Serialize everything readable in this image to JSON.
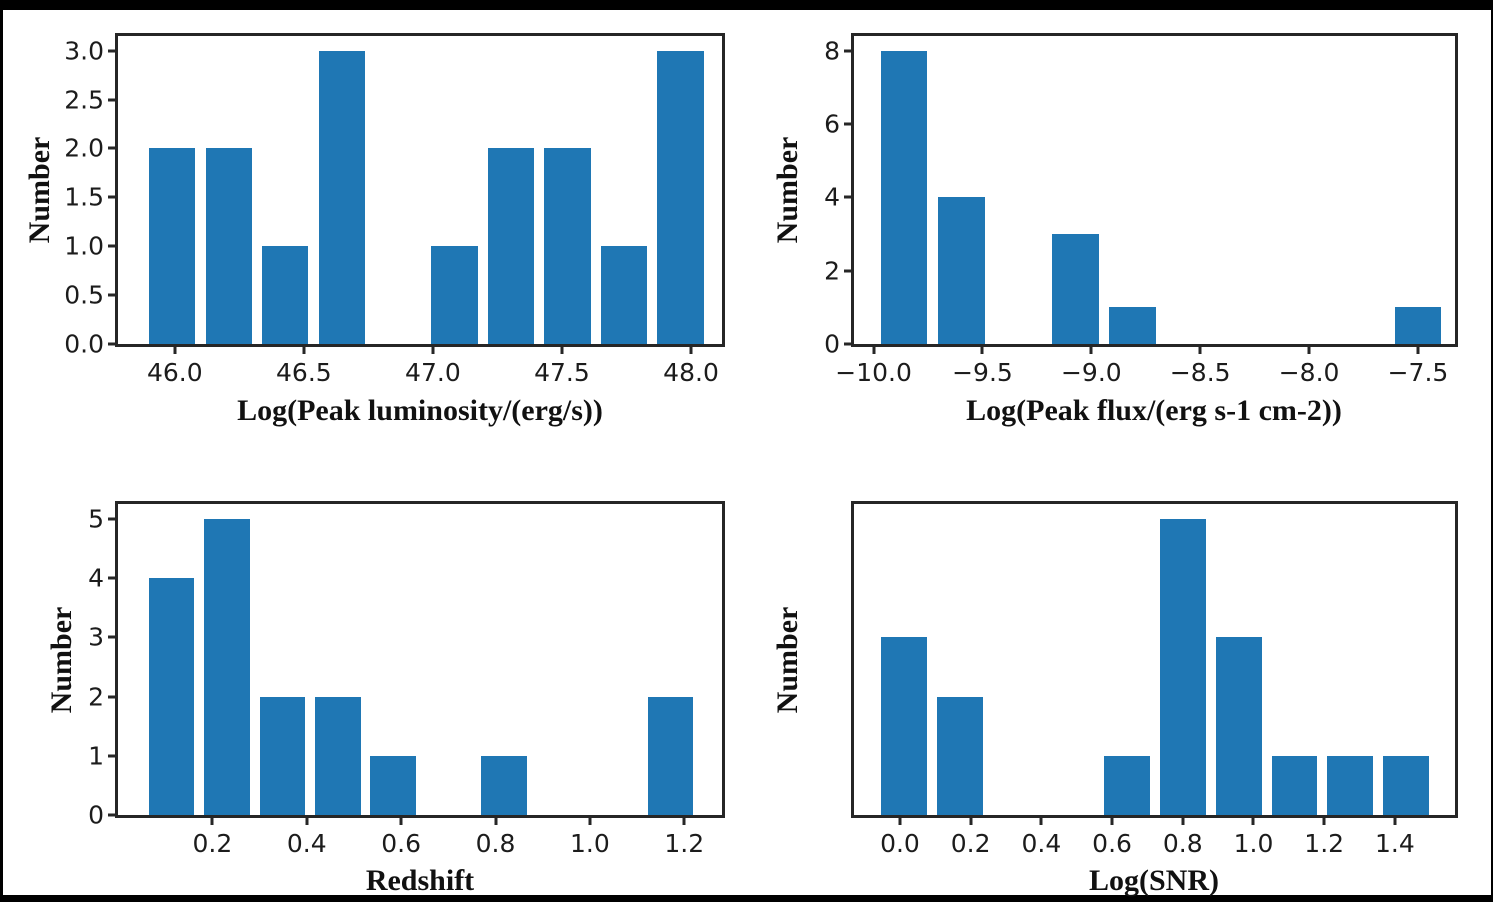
{
  "figure": {
    "background_color": "#000000",
    "canvas_color": "#ffffff",
    "bar_color": "#1f77b4",
    "spine_color": "#262626"
  },
  "chart_data": [
    {
      "id": "peak-luminosity-histogram",
      "type": "bar",
      "title": "",
      "xlabel": "Log(Peak luminosity/(erg/s))",
      "ylabel": "Number",
      "bin_centers": [
        45.99,
        46.209,
        46.428,
        46.647,
        46.866,
        47.084,
        47.303,
        47.522,
        47.741,
        47.96
      ],
      "values": [
        2,
        2,
        1,
        3,
        0,
        1,
        2,
        2,
        1,
        3
      ],
      "bar_width": 0.18,
      "xlim": [
        45.78,
        48.12
      ],
      "ylim": [
        0,
        3.15
      ],
      "grid": false,
      "legend": null,
      "xticks": [
        {
          "v": 46.0,
          "label": "46.0"
        },
        {
          "v": 46.5,
          "label": "46.5"
        },
        {
          "v": 47.0,
          "label": "47.0"
        },
        {
          "v": 47.5,
          "label": "47.5"
        },
        {
          "v": 48.0,
          "label": "48.0"
        }
      ],
      "yticks": [
        {
          "v": 0.0,
          "label": "0.0"
        },
        {
          "v": 0.5,
          "label": "0.5"
        },
        {
          "v": 1.0,
          "label": "1.0"
        },
        {
          "v": 1.5,
          "label": "1.5"
        },
        {
          "v": 2.0,
          "label": "2.0"
        },
        {
          "v": 2.5,
          "label": "2.5"
        },
        {
          "v": 3.0,
          "label": "3.0"
        }
      ]
    },
    {
      "id": "peak-flux-histogram",
      "type": "bar",
      "title": "",
      "xlabel": "Log(Peak flux/(erg s-1 cm-2))",
      "ylabel": "Number",
      "bin_centers": [
        -9.86,
        -9.598,
        -9.336,
        -9.073,
        -8.811,
        -8.549,
        -8.287,
        -8.024,
        -7.762,
        -7.5
      ],
      "values": [
        8,
        4,
        0,
        3,
        1,
        0,
        0,
        0,
        0,
        1
      ],
      "bar_width": 0.215,
      "xlim": [
        -10.09,
        -7.33
      ],
      "ylim": [
        0,
        8.4
      ],
      "grid": false,
      "legend": null,
      "xticks": [
        {
          "v": -10.0,
          "label": "−10.0"
        },
        {
          "v": -9.5,
          "label": "−9.5"
        },
        {
          "v": -9.0,
          "label": "−9.0"
        },
        {
          "v": -8.5,
          "label": "−8.5"
        },
        {
          "v": -8.0,
          "label": "−8.0"
        },
        {
          "v": -7.5,
          "label": "−7.5"
        }
      ],
      "yticks": [
        {
          "v": 0,
          "label": "0"
        },
        {
          "v": 2,
          "label": "2"
        },
        {
          "v": 4,
          "label": "4"
        },
        {
          "v": 6,
          "label": "6"
        },
        {
          "v": 8,
          "label": "8"
        }
      ]
    },
    {
      "id": "redshift-histogram",
      "type": "bar",
      "title": "",
      "xlabel": "Redshift",
      "ylabel": "Number",
      "bin_centers": [
        0.113,
        0.231,
        0.348,
        0.466,
        0.583,
        0.701,
        0.818,
        0.936,
        1.053,
        1.171
      ],
      "values": [
        4,
        5,
        2,
        2,
        1,
        0,
        1,
        0,
        0,
        2
      ],
      "bar_width": 0.096,
      "xlim": [
        0.0,
        1.28
      ],
      "ylim": [
        0,
        5.25
      ],
      "grid": false,
      "legend": null,
      "xticks": [
        {
          "v": 0.2,
          "label": "0.2"
        },
        {
          "v": 0.4,
          "label": "0.4"
        },
        {
          "v": 0.6,
          "label": "0.6"
        },
        {
          "v": 0.8,
          "label": "0.8"
        },
        {
          "v": 1.0,
          "label": "1.0"
        },
        {
          "v": 1.2,
          "label": "1.2"
        }
      ],
      "yticks": [
        {
          "v": 0,
          "label": "0"
        },
        {
          "v": 1,
          "label": "1"
        },
        {
          "v": 2,
          "label": "2"
        },
        {
          "v": 3,
          "label": "3"
        },
        {
          "v": 4,
          "label": "4"
        },
        {
          "v": 5,
          "label": "5"
        }
      ]
    },
    {
      "id": "snr-histogram",
      "type": "bar",
      "title": "",
      "xlabel": "Log(SNR)",
      "ylabel": "Number",
      "bin_centers": [
        0.011,
        0.169,
        0.327,
        0.485,
        0.643,
        0.801,
        0.958,
        1.116,
        1.274,
        1.432
      ],
      "values": [
        3,
        2,
        0,
        0,
        1,
        5,
        3,
        1,
        1,
        1
      ],
      "bar_width": 0.13,
      "xlim": [
        -0.13,
        1.57
      ],
      "ylim": [
        0,
        5.25
      ],
      "grid": false,
      "legend": null,
      "xticks": [
        {
          "v": 0.0,
          "label": "0.0"
        },
        {
          "v": 0.2,
          "label": "0.2"
        },
        {
          "v": 0.4,
          "label": "0.4"
        },
        {
          "v": 0.6,
          "label": "0.6"
        },
        {
          "v": 0.8,
          "label": "0.8"
        },
        {
          "v": 1.0,
          "label": "1.0"
        },
        {
          "v": 1.2,
          "label": "1.2"
        },
        {
          "v": 1.4,
          "label": "1.4"
        }
      ]
    }
  ]
}
